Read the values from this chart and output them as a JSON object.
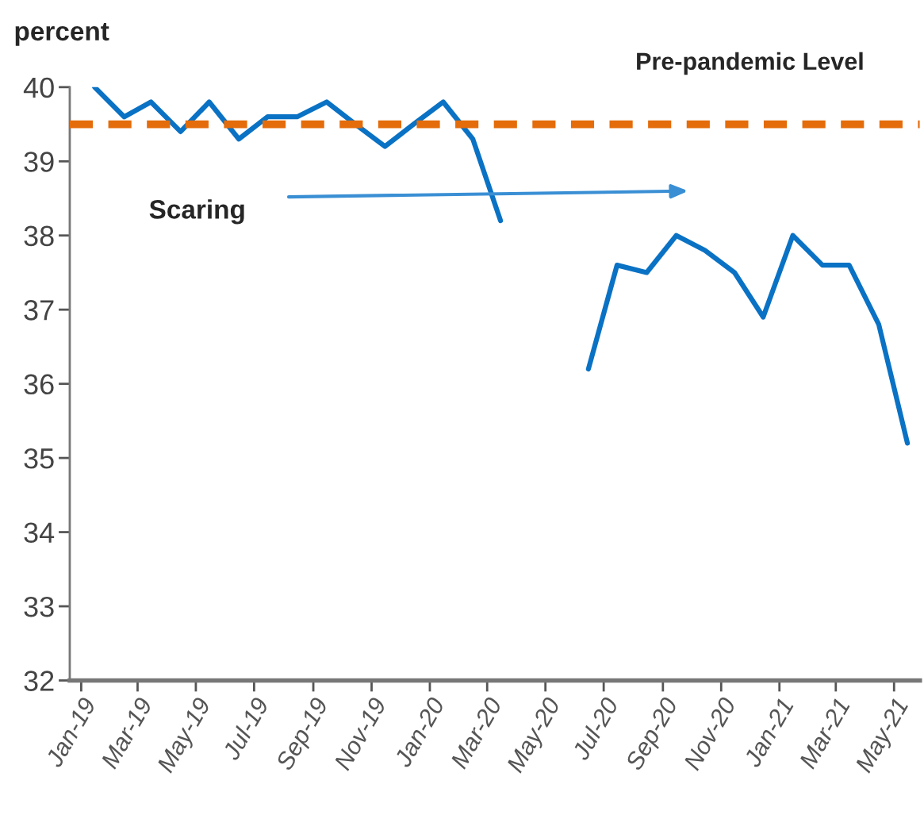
{
  "chart_data": {
    "type": "line",
    "ylabel": "percent",
    "x": [
      "2019-01-15",
      "2019-02-15",
      "2019-03-15",
      "2019-04-15",
      "2019-05-15",
      "2019-06-15",
      "2019-07-15",
      "2019-08-15",
      "2019-09-15",
      "2019-10-15",
      "2019-11-15",
      "2019-12-15",
      "2020-01-15",
      "2020-02-15",
      "2020-03-15",
      "2020-04-15",
      "2020-05-15",
      "2020-06-15",
      "2020-07-15",
      "2020-08-15",
      "2020-09-15",
      "2020-10-15",
      "2020-11-15",
      "2020-12-15",
      "2021-01-15",
      "2021-02-15",
      "2021-03-15",
      "2021-04-15",
      "2021-05-15"
    ],
    "series": [
      {
        "color": "#0a72c4",
        "values": [
          40.0,
          39.6,
          39.8,
          39.4,
          39.8,
          39.3,
          39.6,
          39.6,
          39.8,
          39.5,
          39.2,
          39.5,
          39.8,
          39.3,
          38.2,
          null,
          null,
          36.2,
          37.6,
          37.5,
          38.0,
          37.8,
          37.5,
          36.9,
          38.0,
          37.6,
          37.6,
          36.8,
          35.2
        ]
      }
    ],
    "ylim": [
      32,
      40
    ],
    "yticks": [
      32,
      33,
      34,
      35,
      36,
      37,
      38,
      39,
      40
    ],
    "xlim": [
      "2018-12-20",
      "2021-05-28"
    ],
    "xticks": [
      {
        "value": "2019-01-01",
        "label": "Jan-19"
      },
      {
        "value": "2019-03-01",
        "label": "Mar-19"
      },
      {
        "value": "2019-05-01",
        "label": "May-19"
      },
      {
        "value": "2019-07-01",
        "label": "Jul-19"
      },
      {
        "value": "2019-09-01",
        "label": "Sep-19"
      },
      {
        "value": "2019-11-01",
        "label": "Nov-19"
      },
      {
        "value": "2020-01-01",
        "label": "Jan-20"
      },
      {
        "value": "2020-03-01",
        "label": "Mar-20"
      },
      {
        "value": "2020-05-01",
        "label": "May-20"
      },
      {
        "value": "2020-07-01",
        "label": "Jul-20"
      },
      {
        "value": "2020-09-01",
        "label": "Sep-20"
      },
      {
        "value": "2020-11-01",
        "label": "Nov-20"
      },
      {
        "value": "2021-01-01",
        "label": "Jan-21"
      },
      {
        "value": "2021-03-01",
        "label": "Mar-21"
      },
      {
        "value": "2021-05-01",
        "label": "May-21"
      }
    ],
    "ref_lines": [
      {
        "axis": "y",
        "value": 39.5,
        "label": "Pre-pandemic Level",
        "color": "#e46c0a",
        "line_style": "dashed"
      }
    ],
    "annotations": [
      "Scaring"
    ],
    "grid": false,
    "legend": false,
    "marker": "none",
    "line_style": "solid"
  }
}
